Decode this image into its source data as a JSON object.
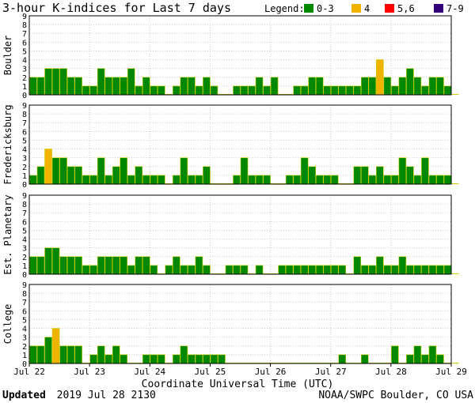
{
  "chart_data": {
    "type": "bar",
    "title": "3-hour K-indices for Last 7 days",
    "legend": {
      "label": "Legend:",
      "placement": "top-right",
      "entries": [
        {
          "label": "0-3",
          "color": "#008800"
        },
        {
          "label": "4",
          "color": "#f0b400"
        },
        {
          "label": "5,6",
          "color": "#ff0000"
        },
        {
          "label": "7-9",
          "color": "#330077"
        }
      ]
    },
    "xlabel": "Coordinate Universal Time (UTC)",
    "x_ticks": [
      "Jul 22",
      "Jul 23",
      "Jul 24",
      "Jul 25",
      "Jul 26",
      "Jul 27",
      "Jul 28",
      "Jul 29"
    ],
    "ylim": [
      0,
      9
    ],
    "y_ticks": [
      "0",
      "1",
      "2",
      "3",
      "4",
      "5",
      "6",
      "7",
      "8",
      "9"
    ],
    "bars_per_day": 8,
    "grid": true,
    "series": [
      {
        "name": "Boulder",
        "values": [
          2,
          2,
          3,
          3,
          3,
          2,
          2,
          1,
          1,
          3,
          2,
          2,
          2,
          3,
          1,
          2,
          1,
          1,
          0,
          1,
          2,
          2,
          1,
          2,
          1,
          0,
          0,
          1,
          1,
          1,
          2,
          1,
          2,
          0,
          0,
          1,
          1,
          2,
          2,
          1,
          1,
          1,
          1,
          1,
          2,
          2,
          4,
          2,
          1,
          2,
          3,
          2,
          1,
          2,
          2,
          1,
          0
        ]
      },
      {
        "name": "Fredericksburg",
        "values": [
          1,
          2,
          4,
          3,
          3,
          2,
          2,
          1,
          1,
          3,
          1,
          2,
          3,
          1,
          2,
          1,
          1,
          1,
          0,
          1,
          3,
          1,
          1,
          2,
          0,
          0,
          0,
          1,
          3,
          1,
          1,
          1,
          0,
          0,
          1,
          1,
          3,
          2,
          1,
          1,
          1,
          0,
          0,
          2,
          2,
          1,
          2,
          1,
          1,
          3,
          2,
          1,
          3,
          1,
          1,
          1,
          0
        ]
      },
      {
        "name": "Est. Planetary",
        "values": [
          2,
          2,
          3,
          3,
          2,
          2,
          2,
          1,
          1,
          2,
          2,
          2,
          2,
          1,
          2,
          2,
          1,
          0,
          1,
          2,
          1,
          1,
          2,
          1,
          0,
          0,
          1,
          1,
          1,
          0,
          1,
          0,
          0,
          1,
          1,
          1,
          1,
          1,
          1,
          1,
          1,
          1,
          0,
          2,
          1,
          1,
          2,
          1,
          1,
          2,
          1,
          1,
          1,
          1,
          1,
          1,
          0
        ]
      },
      {
        "name": "College",
        "values": [
          2,
          2,
          3,
          4,
          2,
          2,
          2,
          0,
          1,
          2,
          1,
          2,
          1,
          0,
          0,
          1,
          1,
          1,
          0,
          1,
          2,
          1,
          1,
          1,
          1,
          1,
          0,
          0,
          0,
          0,
          0,
          0,
          0,
          0,
          0,
          0,
          0,
          0,
          0,
          0,
          0,
          1,
          0,
          0,
          1,
          0,
          0,
          0,
          2,
          0,
          1,
          2,
          1,
          2,
          1,
          0,
          0
        ]
      }
    ]
  },
  "footer": {
    "updated_label": "Updated",
    "updated_value": "2019 Jul 28 2130",
    "source": "NOAA/SWPC Boulder, CO USA"
  }
}
